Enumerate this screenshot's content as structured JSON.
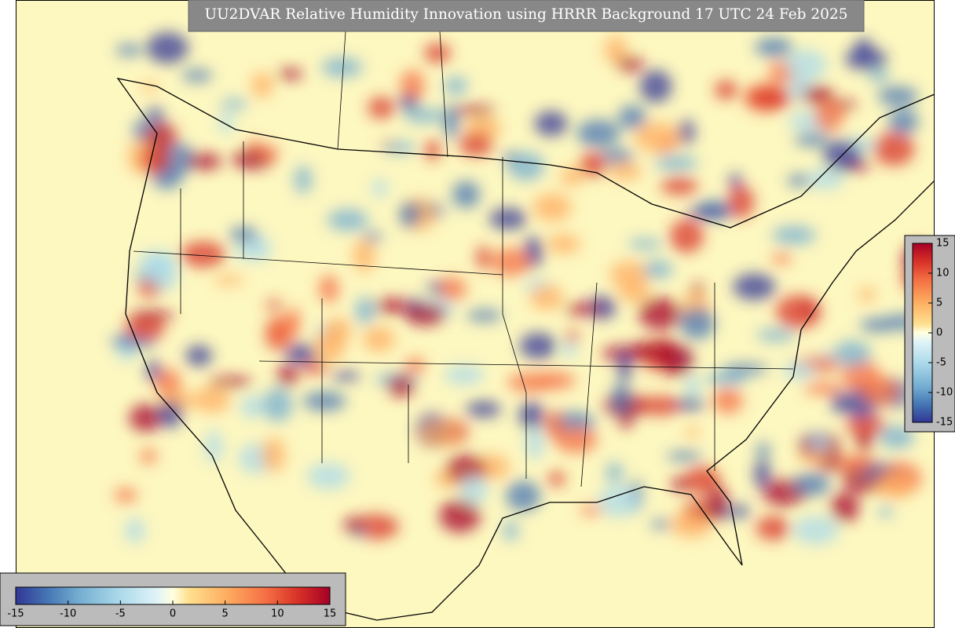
{
  "title": "UU2DVAR Relative Humidity Innovation using HRRR Background 17 UTC 24 Feb 2025",
  "colorbars": [
    {
      "orientation": "vertical",
      "lim": [
        -15,
        15
      ],
      "ticks": [
        -15,
        -10,
        -5,
        0,
        5,
        10,
        15
      ]
    },
    {
      "orientation": "horizontal",
      "lim": [
        -15,
        15
      ],
      "ticks": [
        -15,
        -10,
        -5,
        0,
        5,
        10,
        15
      ]
    }
  ]
}
